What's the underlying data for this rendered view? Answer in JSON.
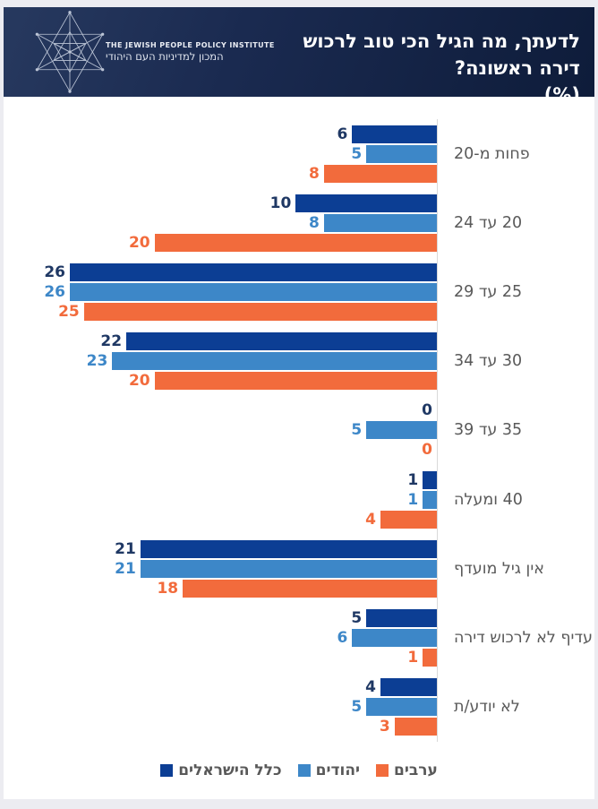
{
  "header": {
    "title_line1": "לדעתך, מה הגיל הכי טוב לרכוש דירה ראשונה?",
    "title_line2": "(%)",
    "logo": {
      "name_en": "The Jewish People Policy Institute",
      "name_he": "המכון למדיניות העם היהודי"
    }
  },
  "chart_data": {
    "type": "bar",
    "orientation": "horizontal",
    "direction": "rtl",
    "title": "לדעתך, מה הגיל הכי טוב לרכוש דירה ראשונה? (%)",
    "categories": [
      "פחות מ-20",
      "20 עד 24",
      "25 עד 29",
      "30 עד 34",
      "35 עד 39",
      "40 ומעלה",
      "אין גיל מועדף",
      "עדיף לא לרכוש דירה",
      "לא יודע/ת"
    ],
    "series": [
      {
        "name": "כלל הישראלים",
        "color": "#0c3e94",
        "label_color": "#1f3864",
        "values": [
          6,
          10,
          26,
          22,
          0,
          1,
          21,
          5,
          4
        ]
      },
      {
        "name": "יהודים",
        "color": "#3d87c8",
        "label_color": "#3d87c8",
        "values": [
          5,
          8,
          26,
          23,
          5,
          1,
          21,
          6,
          5
        ]
      },
      {
        "name": "ערבים",
        "color": "#f26b3c",
        "label_color": "#f26b3c",
        "values": [
          8,
          20,
          25,
          20,
          0,
          4,
          18,
          1,
          3
        ]
      }
    ],
    "xlim": [
      0,
      26
    ],
    "value_labels": true,
    "grid": false,
    "legend_position": "bottom",
    "axis_color": "#d9d9d9"
  },
  "legend": {
    "entries": [
      {
        "label": "כלל הישראלים",
        "color": "#0c3e94"
      },
      {
        "label": "יהודים",
        "color": "#3d87c8"
      },
      {
        "label": "ערבים",
        "color": "#f26b3c"
      }
    ]
  },
  "colors": {
    "page_background": "#ececf1",
    "card_background": "#ffffff",
    "header_gradient_start": "#27395f",
    "header_gradient_end": "#0e1c3a",
    "category_label": "#595959",
    "title_text": "#ffffff"
  }
}
